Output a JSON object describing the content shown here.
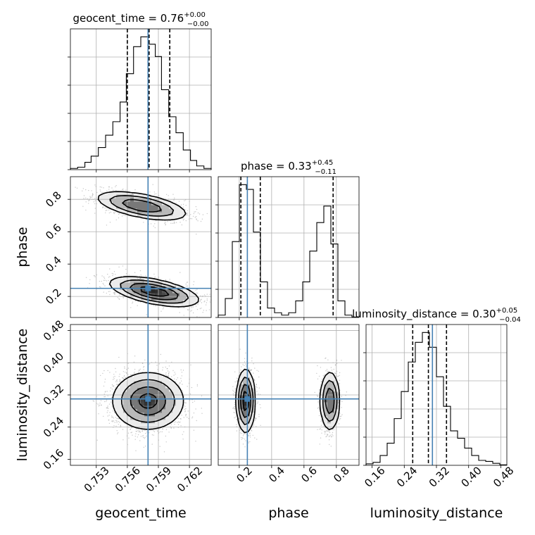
{
  "chart_data": {
    "type": "corner",
    "parameters": [
      {
        "key": "geocent_time",
        "label": "geocent_time",
        "title_prefix": "geocent_time = 0.76",
        "title_plus": "+0.00",
        "title_minus": "−0.00",
        "range": [
          0.7505,
          0.7641
        ],
        "ticks": [
          0.753,
          0.756,
          0.759,
          0.762
        ],
        "tick_labels": [
          "0.753",
          "0.756",
          "0.759",
          "0.762"
        ],
        "truth": 0.758,
        "quantiles": [
          0.756,
          0.7581,
          0.7601
        ],
        "hist_edges": [
          0.7505,
          0.7512,
          0.7519,
          0.7525,
          0.7532,
          0.7539,
          0.7546,
          0.7553,
          0.7559,
          0.7566,
          0.7573,
          0.758,
          0.7587,
          0.7593,
          0.76,
          0.7607,
          0.7614,
          0.7621,
          0.7627,
          0.7634,
          0.7641
        ],
        "hist_counts": [
          2,
          4,
          12,
          22,
          36,
          56,
          78,
          110,
          156,
          200,
          216,
          204,
          184,
          130,
          86,
          60,
          32,
          15,
          6,
          2
        ]
      },
      {
        "key": "phase",
        "label": "phase",
        "title_prefix": "phase = 0.33",
        "title_plus": "+0.45",
        "title_minus": "−0.11",
        "range": [
          0.07,
          0.94
        ],
        "ticks": [
          0.2,
          0.4,
          0.6,
          0.8
        ],
        "tick_labels": [
          "0.2",
          "0.4",
          "0.6",
          "0.8"
        ],
        "truth": 0.25,
        "quantiles": [
          0.21,
          0.33,
          0.78
        ],
        "hist_edges": [
          0.07,
          0.1135,
          0.157,
          0.2005,
          0.244,
          0.2875,
          0.331,
          0.3745,
          0.418,
          0.4615,
          0.505,
          0.5485,
          0.592,
          0.6355,
          0.679,
          0.7225,
          0.766,
          0.8095,
          0.853,
          0.8965,
          0.94
        ],
        "hist_counts": [
          10,
          80,
          320,
          560,
          540,
          360,
          150,
          40,
          20,
          10,
          20,
          70,
          150,
          280,
          400,
          470,
          310,
          70,
          10,
          2
        ]
      },
      {
        "key": "luminosity_distance",
        "label": "luminosity_distance",
        "title_prefix": "luminosity_distance = 0.30",
        "title_plus": "+0.05",
        "title_minus": "−0.04",
        "range": [
          0.145,
          0.495
        ],
        "ticks": [
          0.16,
          0.24,
          0.32,
          0.4,
          0.48
        ],
        "tick_labels": [
          "0.16",
          "0.24",
          "0.32",
          "0.40",
          "0.48"
        ],
        "truth": 0.31,
        "quantiles": [
          0.261,
          0.3,
          0.345
        ],
        "hist_edges": [
          0.145,
          0.1625,
          0.18,
          0.1975,
          0.215,
          0.2325,
          0.25,
          0.2675,
          0.285,
          0.3025,
          0.32,
          0.3375,
          0.355,
          0.3725,
          0.39,
          0.4075,
          0.425,
          0.4425,
          0.46,
          0.4775,
          0.495
        ],
        "hist_counts": [
          3,
          6,
          20,
          45,
          95,
          150,
          210,
          250,
          270,
          240,
          180,
          120,
          70,
          55,
          35,
          20,
          10,
          8,
          4,
          1
        ]
      }
    ],
    "contour_levels_sigma": [
      0.5,
      1.0,
      1.5,
      2.0
    ],
    "truth_color": "#4682b4",
    "contour_color": "#000000",
    "grid": true
  }
}
